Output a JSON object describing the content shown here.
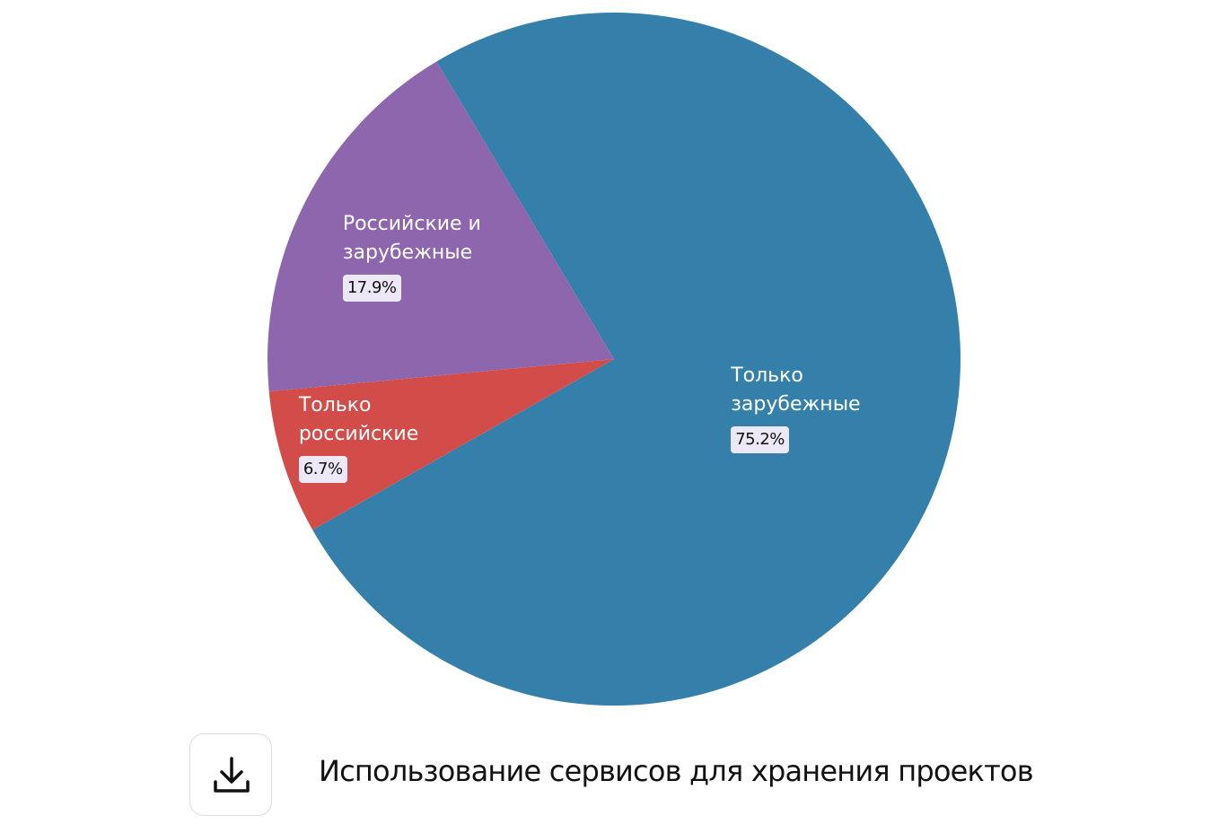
{
  "chart_data": {
    "type": "pie",
    "title": "Использование сервисов для хранения проектов",
    "categories": [
      "Только зарубежные",
      "Только российские",
      "Российские и зарубежные"
    ],
    "values": [
      75.2,
      6.7,
      17.9
    ],
    "value_labels": [
      "75.2%",
      "6.7%",
      "17.9%"
    ],
    "colors": [
      "#3580aa",
      "#d24d49",
      "#8e66ad"
    ]
  }
}
